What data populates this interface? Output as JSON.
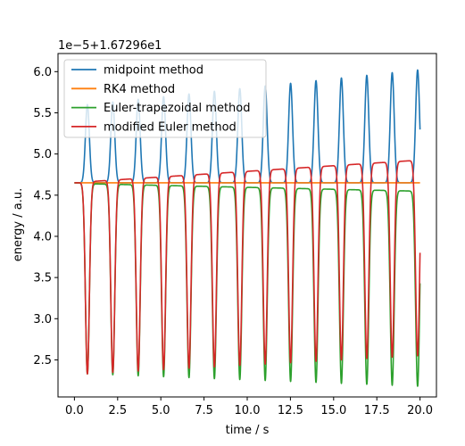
{
  "chart_data": {
    "type": "line",
    "xlabel": "time / s",
    "ylabel": "energy / a.u.",
    "offset_text": "1e−5+1.67296e1",
    "xlim": [
      -0.95,
      20.95
    ],
    "ylim": [
      2.05,
      6.22
    ],
    "x_ticks": [
      0.0,
      2.5,
      5.0,
      7.5,
      10.0,
      12.5,
      15.0,
      17.5,
      20.0
    ],
    "x_tick_labels": [
      "0.0",
      "2.5",
      "5.0",
      "7.5",
      "10.0",
      "12.5",
      "15.0",
      "17.5",
      "20.0"
    ],
    "y_ticks": [
      2.5,
      3.0,
      3.5,
      4.0,
      4.5,
      5.0,
      5.5,
      6.0
    ],
    "y_tick_labels": [
      "2.5",
      "3.0",
      "3.5",
      "4.0",
      "4.5",
      "5.0",
      "5.5",
      "6.0"
    ],
    "grid": false,
    "legend_position": "upper-left",
    "series": [
      {
        "name": "midpoint method",
        "color": "#1f77b4",
        "model": {
          "baseline": 4.65,
          "period": 1.47,
          "first_peak": 0.75,
          "amp_start": 0.95,
          "amp_end": 1.37,
          "baseline_drift": 0.2,
          "end_value": 4.85,
          "shape": "peak"
        }
      },
      {
        "name": "RK4 method",
        "color": "#ff7f0e",
        "model": {
          "baseline": 4.65,
          "shape": "flat"
        }
      },
      {
        "name": "Euler-trapezoidal method",
        "color": "#2ca02c",
        "model": {
          "baseline": 4.65,
          "period": 1.47,
          "first_peak": 0.75,
          "trough_start": 2.33,
          "trough_end": 2.18,
          "plateau_start": 4.64,
          "plateau_end": 4.55,
          "end_value": 4.54,
          "shape": "dip"
        }
      },
      {
        "name": "modified Euler method",
        "color": "#d62728",
        "model": {
          "baseline": 4.65,
          "period": 1.47,
          "first_peak": 0.75,
          "trough_start": 2.33,
          "trough_end": 2.55,
          "plateau_start": 4.66,
          "plateau_end": 4.92,
          "end_value": 4.93,
          "shape": "dip"
        }
      }
    ]
  }
}
